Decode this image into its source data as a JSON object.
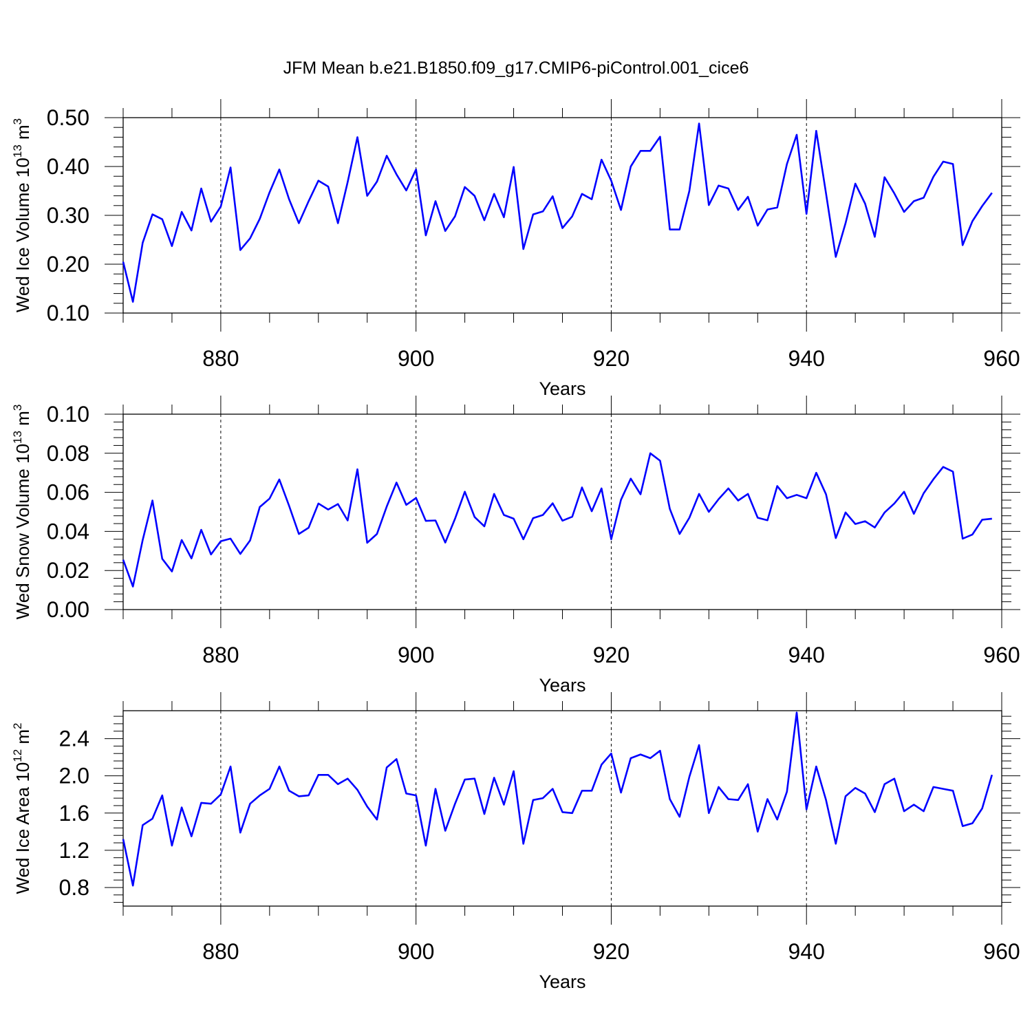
{
  "title": "JFM Mean b.e21.B1850.f09_g17.CMIP6-piControl.001_cice6",
  "line_color": "#0000ff",
  "chart_data": [
    {
      "type": "line",
      "name": "ice-volume",
      "xlabel": "Years",
      "ylabel": {
        "main": "Wed Ice Volume 10",
        "exp": "13",
        "unit": " m",
        "unit_exp": "3"
      },
      "xlim": [
        870,
        960
      ],
      "ylim": [
        0.1,
        0.5
      ],
      "xticks": [
        880,
        900,
        920,
        940,
        960
      ],
      "xtick_labels": [
        "880",
        "900",
        "920",
        "940",
        "960"
      ],
      "yticks": [
        0.1,
        0.2,
        0.3,
        0.4,
        0.5
      ],
      "ytick_labels": [
        "0.10",
        "0.20",
        "0.30",
        "0.40",
        "0.50"
      ],
      "grid_x": [
        880,
        900,
        920,
        940
      ],
      "x_start": 870,
      "values": [
        0.205,
        0.123,
        0.244,
        0.302,
        0.292,
        0.237,
        0.307,
        0.269,
        0.355,
        0.287,
        0.318,
        0.398,
        0.229,
        0.253,
        0.293,
        0.347,
        0.394,
        0.333,
        0.284,
        0.329,
        0.371,
        0.359,
        0.284,
        0.368,
        0.46,
        0.34,
        0.369,
        0.422,
        0.384,
        0.351,
        0.394,
        0.259,
        0.329,
        0.268,
        0.298,
        0.358,
        0.34,
        0.29,
        0.344,
        0.296,
        0.399,
        0.231,
        0.302,
        0.308,
        0.339,
        0.274,
        0.298,
        0.344,
        0.333,
        0.414,
        0.371,
        0.311,
        0.4,
        0.432,
        0.432,
        0.461,
        0.271,
        0.271,
        0.35,
        0.488,
        0.321,
        0.361,
        0.355,
        0.311,
        0.338,
        0.279,
        0.312,
        0.316,
        0.405,
        0.465,
        0.303,
        0.473,
        0.345,
        0.215,
        0.284,
        0.365,
        0.324,
        0.256,
        0.378,
        0.345,
        0.307,
        0.329,
        0.336,
        0.379,
        0.41,
        0.405,
        0.239,
        0.288,
        0.319,
        0.346
      ]
    },
    {
      "type": "line",
      "name": "snow-volume",
      "xlabel": "Years",
      "ylabel": {
        "main": "Wed Snow Volume 10",
        "exp": "13",
        "unit": " m",
        "unit_exp": "3"
      },
      "xlim": [
        870,
        960
      ],
      "ylim": [
        0.0,
        0.1
      ],
      "xticks": [
        880,
        900,
        920,
        940,
        960
      ],
      "xtick_labels": [
        "880",
        "900",
        "920",
        "940",
        "960"
      ],
      "yticks": [
        0.0,
        0.02,
        0.04,
        0.06,
        0.08,
        0.1
      ],
      "ytick_labels": [
        "0.00",
        "0.02",
        "0.04",
        "0.06",
        "0.08",
        "0.10"
      ],
      "grid_x": [
        880,
        900,
        920
      ],
      "x_start": 870,
      "values": [
        0.0255,
        0.0118,
        0.0356,
        0.0558,
        0.026,
        0.0195,
        0.0356,
        0.0262,
        0.0408,
        0.0282,
        0.035,
        0.0363,
        0.0285,
        0.0354,
        0.0525,
        0.0568,
        0.0666,
        0.0531,
        0.0387,
        0.0419,
        0.0543,
        0.0512,
        0.054,
        0.0456,
        0.0718,
        0.0342,
        0.0387,
        0.0527,
        0.065,
        0.0536,
        0.0571,
        0.0454,
        0.0456,
        0.0343,
        0.0465,
        0.0603,
        0.0474,
        0.0426,
        0.0592,
        0.0484,
        0.0465,
        0.036,
        0.0468,
        0.0484,
        0.0544,
        0.0455,
        0.0475,
        0.0625,
        0.0503,
        0.062,
        0.036,
        0.0562,
        0.067,
        0.059,
        0.08,
        0.0762,
        0.0515,
        0.0387,
        0.047,
        0.0592,
        0.05,
        0.0565,
        0.062,
        0.0558,
        0.0592,
        0.047,
        0.0457,
        0.0632,
        0.057,
        0.0587,
        0.057,
        0.07,
        0.059,
        0.0366,
        0.0497,
        0.0438,
        0.0452,
        0.042,
        0.0497,
        0.0543,
        0.0603,
        0.049,
        0.0595,
        0.0667,
        0.073,
        0.0706,
        0.0363,
        0.0384,
        0.046,
        0.0465
      ]
    },
    {
      "type": "line",
      "name": "ice-area",
      "xlabel": "Years",
      "ylabel": {
        "main": "Wed Ice Area 10",
        "exp": "12",
        "unit": " m",
        "unit_exp": "2"
      },
      "xlim": [
        870,
        960
      ],
      "ylim": [
        0.6,
        2.7
      ],
      "xticks": [
        880,
        900,
        920,
        940,
        960
      ],
      "xtick_labels": [
        "880",
        "900",
        "920",
        "940",
        "960"
      ],
      "yticks": [
        0.8,
        1.2,
        1.6,
        2.0,
        2.4
      ],
      "ytick_labels": [
        "0.8",
        "1.2",
        "1.6",
        "2.0",
        "2.4"
      ],
      "grid_x": [
        880,
        900,
        920,
        940
      ],
      "x_start": 870,
      "values": [
        1.32,
        0.82,
        1.47,
        1.54,
        1.79,
        1.25,
        1.66,
        1.35,
        1.71,
        1.7,
        1.8,
        2.1,
        1.39,
        1.7,
        1.79,
        1.86,
        2.1,
        1.84,
        1.78,
        1.79,
        2.01,
        2.01,
        1.91,
        1.97,
        1.85,
        1.67,
        1.53,
        2.09,
        2.18,
        1.81,
        1.79,
        1.25,
        1.86,
        1.41,
        1.7,
        1.96,
        1.97,
        1.59,
        1.98,
        1.69,
        2.05,
        1.27,
        1.74,
        1.76,
        1.86,
        1.61,
        1.6,
        1.84,
        1.84,
        2.12,
        2.24,
        1.82,
        2.19,
        2.23,
        2.19,
        2.27,
        1.75,
        1.56,
        1.99,
        2.33,
        1.6,
        1.88,
        1.75,
        1.74,
        1.91,
        1.4,
        1.75,
        1.53,
        1.83,
        2.68,
        1.64,
        2.1,
        1.74,
        1.27,
        1.78,
        1.87,
        1.81,
        1.61,
        1.91,
        1.97,
        1.62,
        1.69,
        1.62,
        1.88,
        1.86,
        1.84,
        1.46,
        1.49,
        1.65,
        2.01
      ]
    }
  ]
}
